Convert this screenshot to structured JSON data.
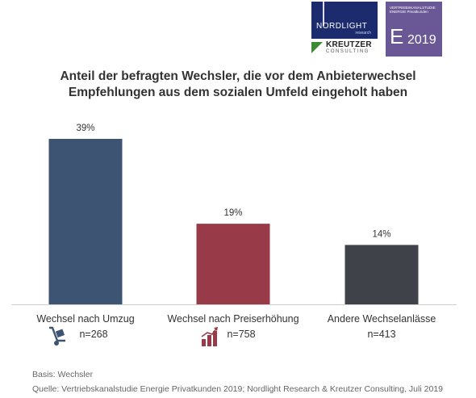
{
  "logos": {
    "nordlight_name": "NORDLIGHT",
    "nordlight_sub": "research",
    "kreutzer_name": "KREUTZER",
    "kreutzer_sub": "CONSULTING",
    "study_line1": "VERTRIEBSKANALSTUDIE",
    "study_line2": "ENERGIE  Privatkunden",
    "study_letter": "E",
    "study_year": "2019"
  },
  "chart_data": {
    "type": "bar",
    "title_lines": [
      "Anteil der befragten Wechsler, die vor dem Anbieterwechsel",
      "Empfehlungen aus dem sozialen Umfeld eingeholt haben"
    ],
    "categories": [
      "Wechsel nach Umzug",
      "Wechsel nach Preiserhöhung",
      "Andere Wechselanlässe"
    ],
    "values": [
      39,
      19,
      14
    ],
    "value_labels": [
      "39%",
      "19%",
      "14%"
    ],
    "n_labels": [
      "n=268",
      "n=758",
      "n=413"
    ],
    "colors": [
      "#3d5573",
      "#983a48",
      "#3f4349"
    ],
    "icons": [
      "hand-truck-icon",
      "rising-bars-icon",
      null
    ],
    "ylim": [
      0,
      39
    ],
    "grid": false
  },
  "footer": {
    "basis": "Basis: Wechsler",
    "source": "Quelle: Vertriebskanalstudie Energie Privatkunden 2019; Nordlight Research & Kreutzer Consulting, Juli 2019"
  }
}
